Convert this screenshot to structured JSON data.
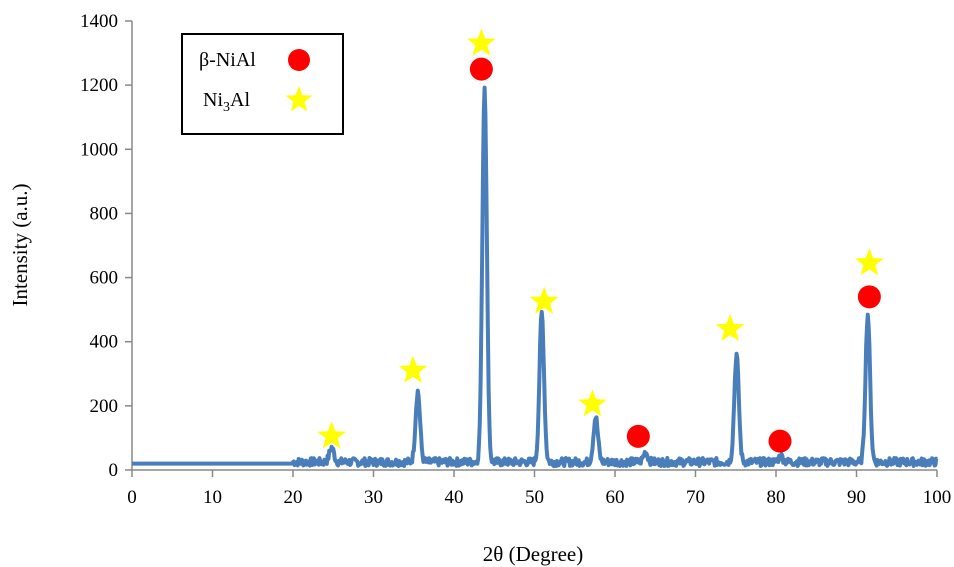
{
  "chart_data": {
    "type": "line",
    "title": "",
    "xlabel": "2θ (Degree)",
    "ylabel": "Intensity (a.u.)",
    "xlim": [
      0,
      100
    ],
    "ylim": [
      0,
      1400
    ],
    "xticks": [
      0,
      10,
      20,
      30,
      40,
      50,
      60,
      70,
      80,
      90,
      100
    ],
    "yticks": [
      0,
      200,
      400,
      600,
      800,
      1000,
      1200,
      1400
    ],
    "grid": false,
    "legend_position": "top-left",
    "legend": [
      {
        "label_main": "β-NiAl",
        "label_sub": "",
        "label_tail": "",
        "marker": "circle",
        "color": "#ff0000"
      },
      {
        "label_main": "Ni",
        "label_sub": "3",
        "label_tail": "Al",
        "marker": "star",
        "color": "#ffff00"
      }
    ],
    "series": [
      {
        "color": "#4a7ebb",
        "baseline": 20,
        "baseline_start": 0,
        "noise_start": 20,
        "noise_level": 25,
        "peaks": [
          {
            "x": 24.8,
            "y": 65
          },
          {
            "x": 35.5,
            "y": 240
          },
          {
            "x": 43.8,
            "y": 1190
          },
          {
            "x": 50.9,
            "y": 485
          },
          {
            "x": 57.6,
            "y": 160
          },
          {
            "x": 63.8,
            "y": 50
          },
          {
            "x": 75.1,
            "y": 355
          },
          {
            "x": 80.6,
            "y": 38
          },
          {
            "x": 91.4,
            "y": 480
          }
        ]
      }
    ],
    "annotations": [
      {
        "marker": "star",
        "x": 24.8,
        "y": 105
      },
      {
        "marker": "star",
        "x": 34.9,
        "y": 310
      },
      {
        "marker": "star",
        "x": 43.4,
        "y": 1330
      },
      {
        "marker": "circle",
        "x": 43.4,
        "y": 1250
      },
      {
        "marker": "star",
        "x": 51.2,
        "y": 525
      },
      {
        "marker": "star",
        "x": 57.2,
        "y": 205
      },
      {
        "marker": "circle",
        "x": 62.9,
        "y": 105
      },
      {
        "marker": "star",
        "x": 74.3,
        "y": 440
      },
      {
        "marker": "circle",
        "x": 80.5,
        "y": 90
      },
      {
        "marker": "star",
        "x": 91.6,
        "y": 645
      },
      {
        "marker": "circle",
        "x": 91.6,
        "y": 540
      }
    ]
  }
}
